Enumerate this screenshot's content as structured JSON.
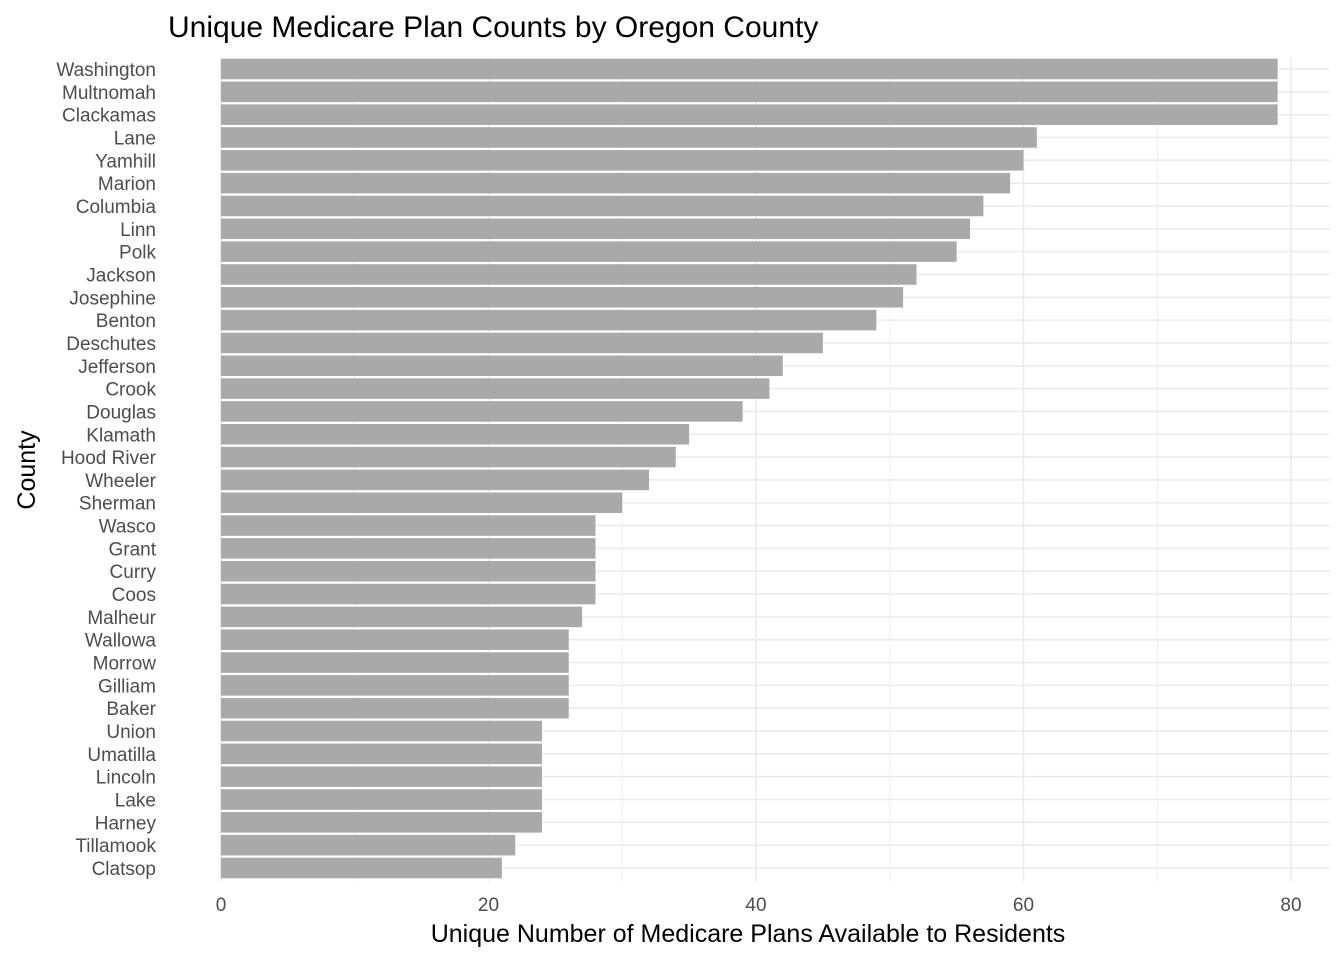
{
  "chart_data": {
    "type": "bar",
    "orientation": "horizontal",
    "title": "Unique Medicare Plan Counts by Oregon County",
    "xlabel": "Unique Number of Medicare Plans Available to Residents",
    "ylabel": "County",
    "xlim": [
      0,
      80
    ],
    "x_ticks": [
      0,
      20,
      40,
      60,
      80
    ],
    "grid": true,
    "bar_color": "#a9a9a9",
    "grid_color": "#ebebeb",
    "categories": [
      "Washington",
      "Multnomah",
      "Clackamas",
      "Lane",
      "Yamhill",
      "Marion",
      "Columbia",
      "Linn",
      "Polk",
      "Jackson",
      "Josephine",
      "Benton",
      "Deschutes",
      "Jefferson",
      "Crook",
      "Douglas",
      "Klamath",
      "Hood River",
      "Wheeler",
      "Sherman",
      "Wasco",
      "Grant",
      "Curry",
      "Coos",
      "Malheur",
      "Wallowa",
      "Morrow",
      "Gilliam",
      "Baker",
      "Union",
      "Umatilla",
      "Lincoln",
      "Lake",
      "Harney",
      "Tillamook",
      "Clatsop"
    ],
    "values": [
      79,
      79,
      79,
      61,
      60,
      59,
      57,
      56,
      55,
      52,
      51,
      49,
      45,
      42,
      41,
      39,
      35,
      34,
      32,
      30,
      28,
      28,
      28,
      28,
      27,
      26,
      26,
      26,
      26,
      24,
      24,
      24,
      24,
      24,
      22,
      21
    ]
  }
}
